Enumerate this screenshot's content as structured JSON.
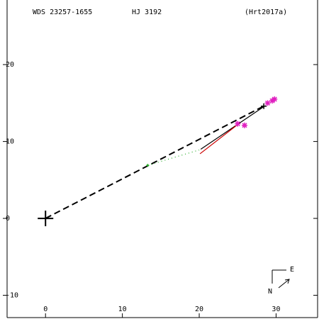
{
  "chart_data": {
    "type": "scatter",
    "header": [
      "WDS 23257-1655",
      "HJ 3192",
      "(Hrt2017a)"
    ],
    "xlim": [
      -5,
      35.4
    ],
    "ylim": [
      -12.9,
      28.4
    ],
    "xticks": [
      0,
      10,
      20,
      30
    ],
    "yticks": [
      20,
      10,
      0,
      -10
    ],
    "series": [
      {
        "color": "#000000",
        "style": "dashed",
        "x": [
          0,
          28.4
        ],
        "y": [
          0,
          14.6
        ]
      },
      {
        "color": "#000000",
        "style": "solid",
        "x": [
          20.2,
          28.5
        ],
        "y": [
          9.0,
          14.6
        ]
      },
      {
        "color": "#cc0000",
        "style": "solid",
        "x": [
          20.1,
          25.0
        ],
        "y": [
          8.4,
          12.2
        ]
      },
      {
        "color": "#22aa22",
        "style": "dotted",
        "x": [
          13.3,
          20.0
        ],
        "y": [
          6.9,
          8.9
        ]
      }
    ],
    "points": {
      "color": "#e020c0",
      "marker": "asterisk",
      "x": [
        25.0,
        25.9,
        28.9,
        29.5,
        29.8
      ],
      "y": [
        12.3,
        12.1,
        15.0,
        15.3,
        15.5
      ]
    },
    "markers": [
      {
        "shape": "large-plus",
        "color": "#000000",
        "x": 0,
        "y": 0
      },
      {
        "shape": "small-plus",
        "color": "#000000",
        "x": 28.4,
        "y": 14.6
      },
      {
        "shape": "tiny-plus",
        "color": "#22aa22",
        "x": 13.3,
        "y": 6.9
      }
    ],
    "compass": {
      "north": "N",
      "east": "E"
    }
  }
}
